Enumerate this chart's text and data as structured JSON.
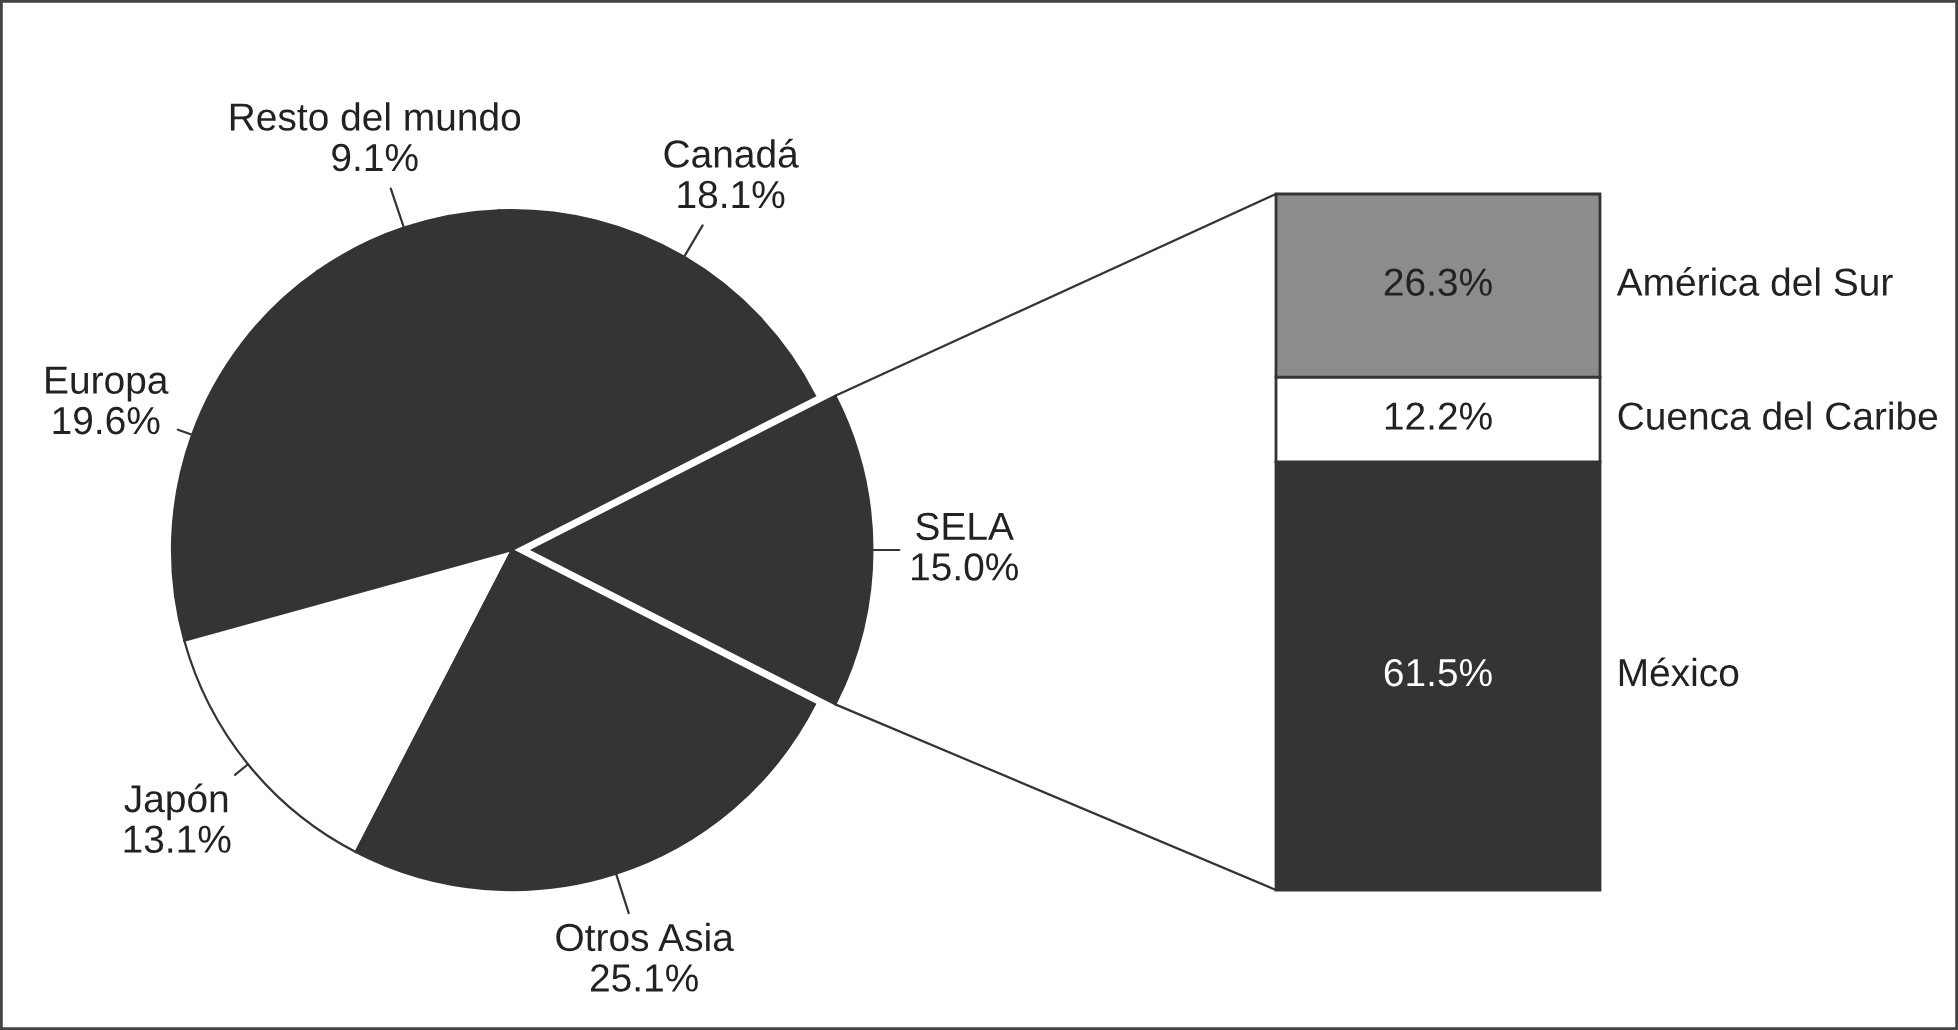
{
  "chart_data": [
    {
      "type": "pie",
      "categories": [
        "SELA",
        "Canadá",
        "Resto del mundo",
        "Europa",
        "Japón",
        "Otros Asia"
      ],
      "values": [
        15.0,
        18.1,
        9.1,
        19.6,
        13.1,
        25.1
      ],
      "value_labels": [
        "15.0%",
        "18.1%",
        "9.1%",
        "19.6%",
        "13.1%",
        "25.1%"
      ],
      "colors": [
        "#343434",
        "#343434",
        "#343434",
        "#343434",
        "#ffffff",
        "#343434"
      ]
    },
    {
      "type": "bar",
      "stacked": true,
      "categories": [
        null
      ],
      "tick_labels": false,
      "series": [
        {
          "name": "México",
          "color": "#343434",
          "values": [
            61.5
          ],
          "value_labels": [
            "61.5%"
          ]
        },
        {
          "name": "Cuenca del Caribe",
          "color": "#ffffff",
          "values": [
            12.2
          ],
          "value_labels": [
            "12.2%"
          ]
        },
        {
          "name": "América del Sur",
          "color": "#8c8c8c",
          "values": [
            26.3
          ],
          "value_labels": [
            "26.3%"
          ]
        }
      ]
    }
  ]
}
